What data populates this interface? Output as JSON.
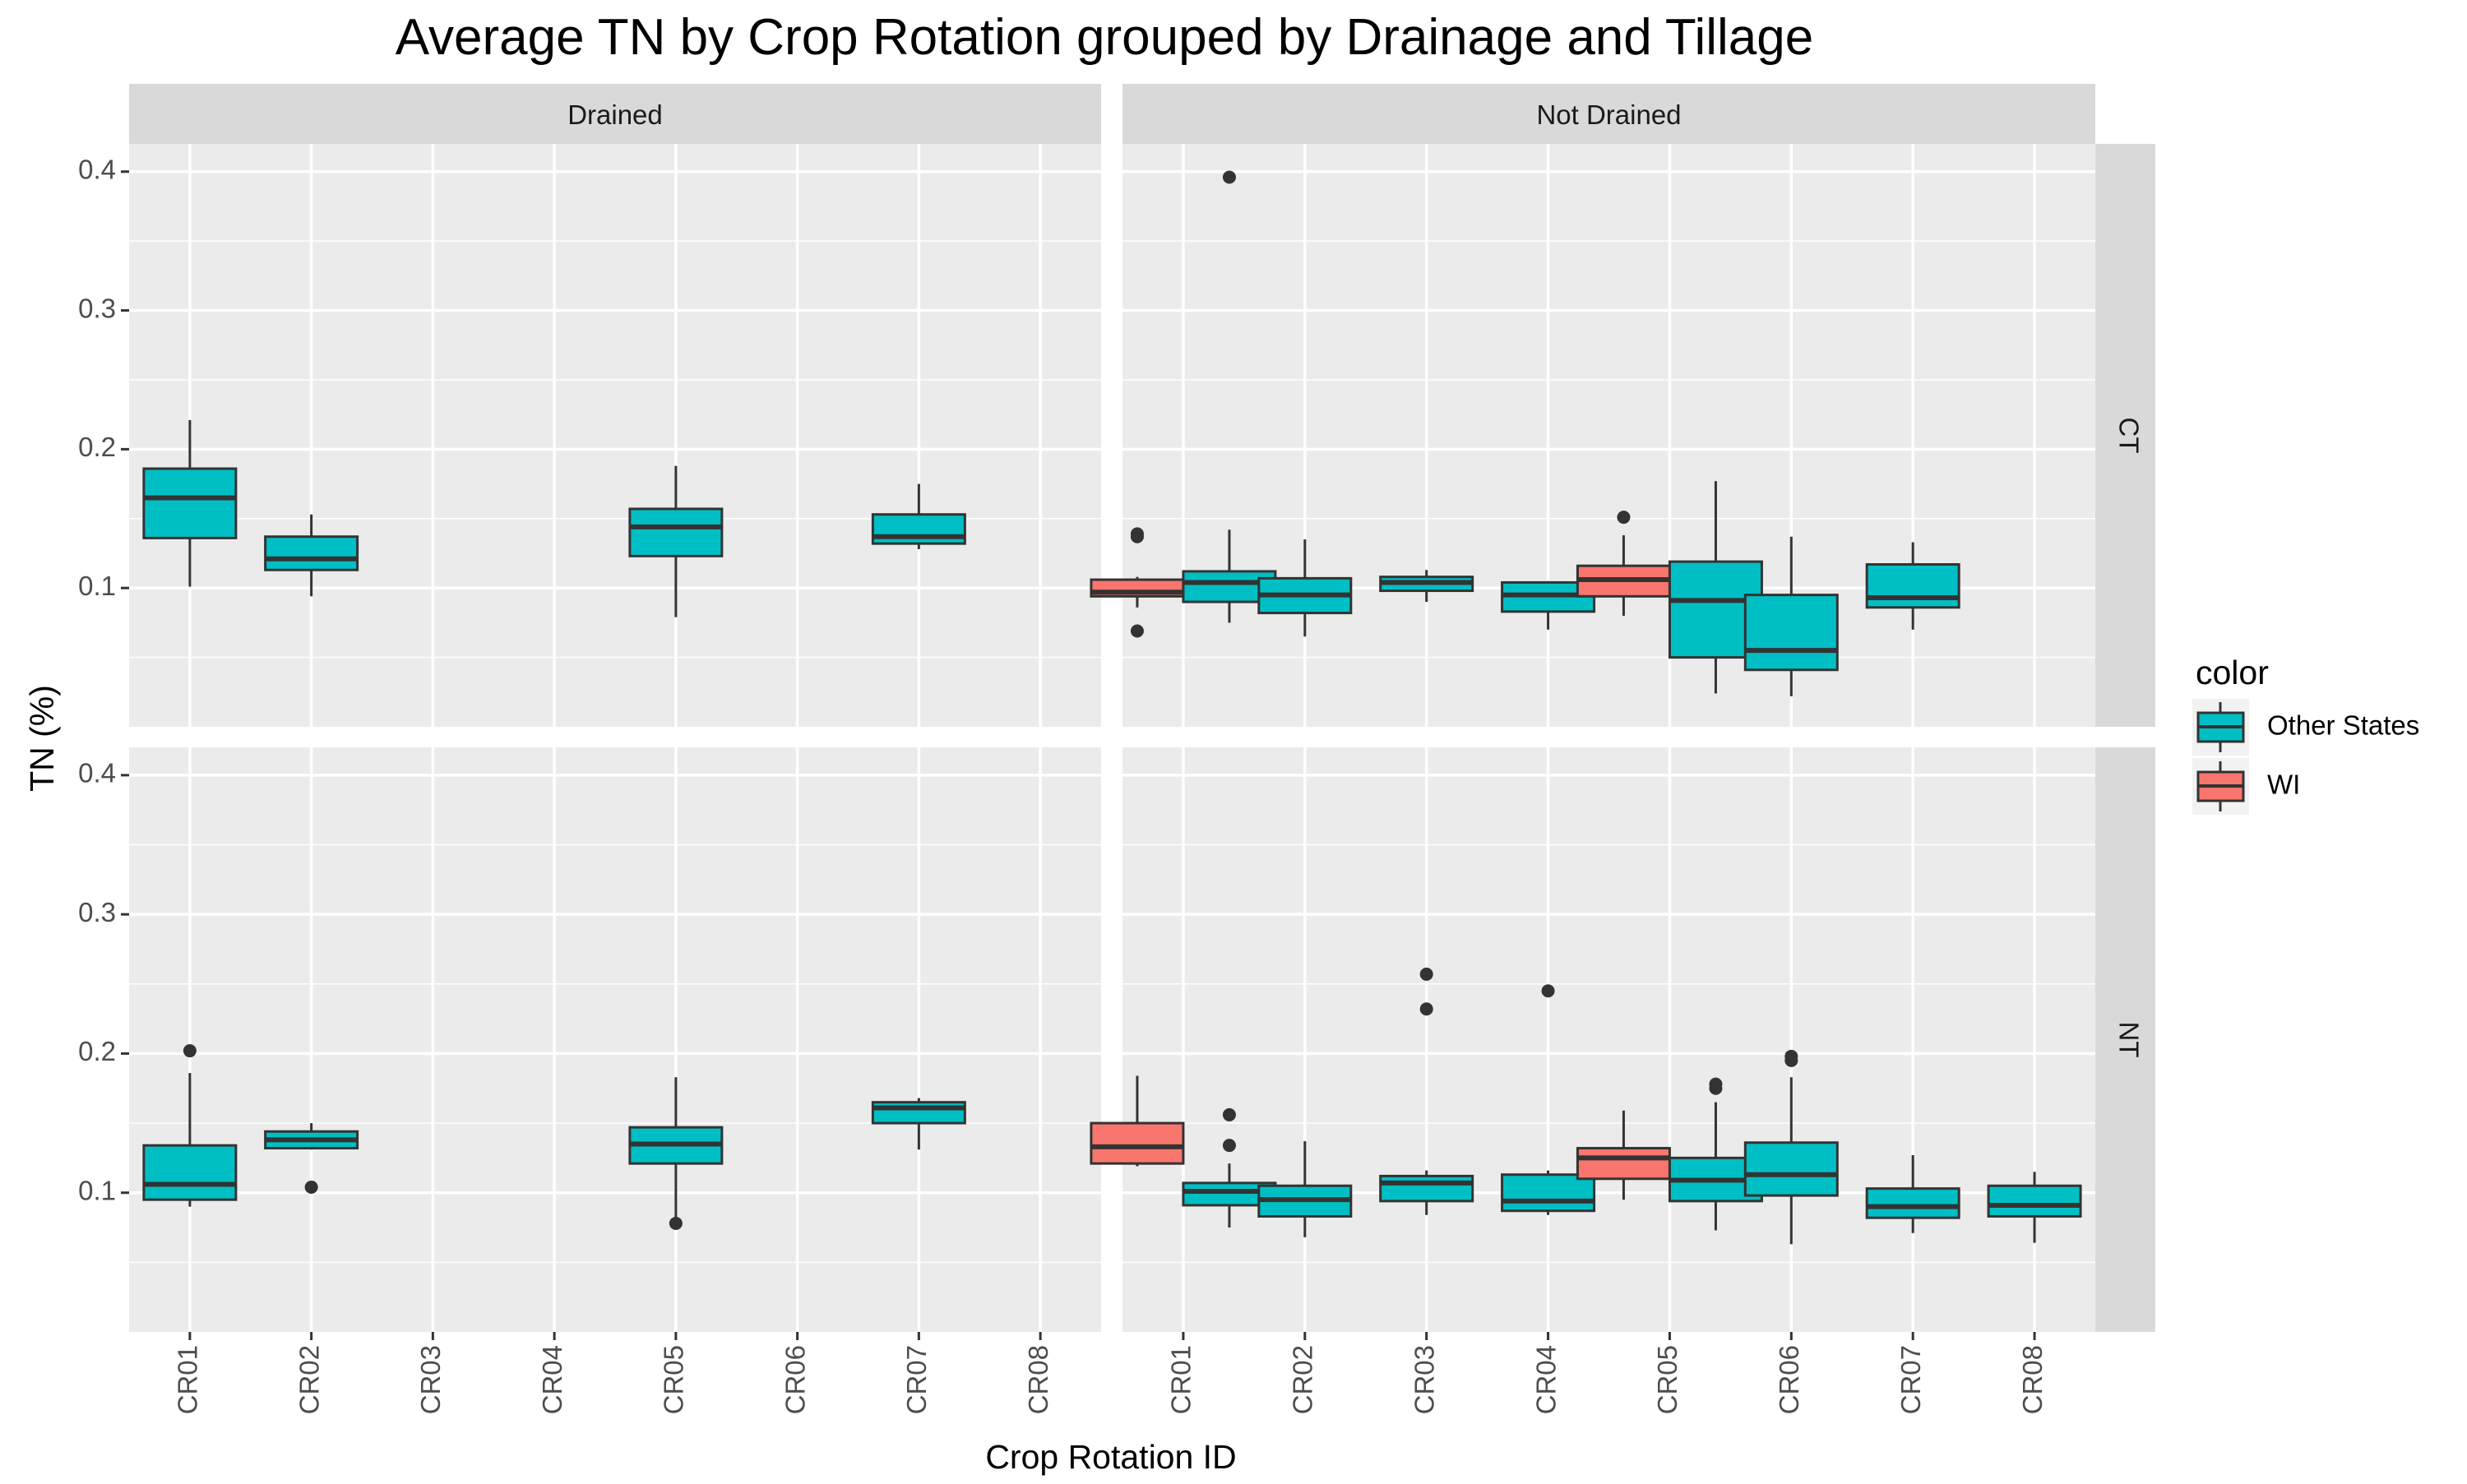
{
  "chart_data": {
    "type": "boxplot",
    "title": "Average TN by Crop Rotation grouped by Drainage and Tillage",
    "xlabel": "Crop Rotation ID",
    "ylabel": "TN (%)",
    "ylim": [
      0,
      0.42
    ],
    "yticks": [
      0.1,
      0.2,
      0.3,
      0.4
    ],
    "ytick_labels": [
      "0.1",
      "0.2",
      "0.3",
      "0.4"
    ],
    "categories": [
      "CR01",
      "CR02",
      "CR03",
      "CR04",
      "CR05",
      "CR06",
      "CR07",
      "CR08"
    ],
    "facet_columns": [
      "Drained",
      "Not Drained"
    ],
    "facet_rows": [
      "CT",
      "NT"
    ],
    "grid": true,
    "legend": {
      "title": "color",
      "position": "right",
      "entries": [
        {
          "label": "Other States",
          "color": "#00BFC4"
        },
        {
          "label": "WI",
          "color": "#F8766D"
        }
      ]
    },
    "series": [
      {
        "name": "Other States",
        "color": "#00BFC4"
      },
      {
        "name": "WI",
        "color": "#F8766D"
      }
    ],
    "panels": [
      {
        "column": "Drained",
        "row": "CT",
        "boxes": [
          {
            "category": "CR01",
            "series": "Other States",
            "lower_whisker": 0.101,
            "q1": 0.136,
            "median": 0.165,
            "q3": 0.186,
            "upper_whisker": 0.221,
            "outliers": []
          },
          {
            "category": "CR02",
            "series": "Other States",
            "lower_whisker": 0.094,
            "q1": 0.113,
            "median": 0.121,
            "q3": 0.137,
            "upper_whisker": 0.153,
            "outliers": []
          },
          {
            "category": "CR05",
            "series": "Other States",
            "lower_whisker": 0.079,
            "q1": 0.123,
            "median": 0.144,
            "q3": 0.157,
            "upper_whisker": 0.188,
            "outliers": []
          },
          {
            "category": "CR07",
            "series": "Other States",
            "lower_whisker": 0.128,
            "q1": 0.132,
            "median": 0.137,
            "q3": 0.153,
            "upper_whisker": 0.175,
            "outliers": []
          }
        ]
      },
      {
        "column": "Not Drained",
        "row": "CT",
        "boxes": [
          {
            "category": "CR01",
            "series": "WI",
            "lower_whisker": 0.086,
            "q1": 0.094,
            "median": 0.097,
            "q3": 0.106,
            "upper_whisker": 0.108,
            "outliers": [
              0.069,
              0.137,
              0.139
            ]
          },
          {
            "category": "CR01",
            "series": "Other States",
            "lower_whisker": 0.075,
            "q1": 0.09,
            "median": 0.104,
            "q3": 0.112,
            "upper_whisker": 0.142,
            "outliers": [
              0.396
            ]
          },
          {
            "category": "CR02",
            "series": "Other States",
            "lower_whisker": 0.065,
            "q1": 0.082,
            "median": 0.095,
            "q3": 0.107,
            "upper_whisker": 0.135,
            "outliers": []
          },
          {
            "category": "CR03",
            "series": "Other States",
            "lower_whisker": 0.09,
            "q1": 0.098,
            "median": 0.104,
            "q3": 0.108,
            "upper_whisker": 0.113,
            "outliers": []
          },
          {
            "category": "CR04",
            "series": "Other States",
            "lower_whisker": 0.07,
            "q1": 0.083,
            "median": 0.095,
            "q3": 0.104,
            "upper_whisker": 0.105,
            "outliers": []
          },
          {
            "category": "CR05",
            "series": "WI",
            "lower_whisker": 0.08,
            "q1": 0.094,
            "median": 0.106,
            "q3": 0.116,
            "upper_whisker": 0.138,
            "outliers": [
              0.151
            ]
          },
          {
            "category": "CR05",
            "series": "Other States",
            "lower_whisker": 0.024,
            "q1": 0.05,
            "median": 0.091,
            "q3": 0.119,
            "upper_whisker": 0.177,
            "outliers": []
          },
          {
            "category": "CR06",
            "series": "Other States",
            "lower_whisker": 0.022,
            "q1": 0.041,
            "median": 0.055,
            "q3": 0.095,
            "upper_whisker": 0.137,
            "outliers": []
          },
          {
            "category": "CR07",
            "series": "Other States",
            "lower_whisker": 0.07,
            "q1": 0.086,
            "median": 0.093,
            "q3": 0.117,
            "upper_whisker": 0.133,
            "outliers": []
          }
        ]
      },
      {
        "column": "Drained",
        "row": "NT",
        "boxes": [
          {
            "category": "CR01",
            "series": "Other States",
            "lower_whisker": 0.09,
            "q1": 0.095,
            "median": 0.106,
            "q3": 0.134,
            "upper_whisker": 0.186,
            "outliers": [
              0.202
            ]
          },
          {
            "category": "CR02",
            "series": "Other States",
            "lower_whisker": 0.131,
            "q1": 0.132,
            "median": 0.138,
            "q3": 0.144,
            "upper_whisker": 0.15,
            "outliers": [
              0.104
            ]
          },
          {
            "category": "CR05",
            "series": "Other States",
            "lower_whisker": 0.081,
            "q1": 0.121,
            "median": 0.135,
            "q3": 0.147,
            "upper_whisker": 0.183,
            "outliers": [
              0.078
            ]
          },
          {
            "category": "CR07",
            "series": "Other States",
            "lower_whisker": 0.131,
            "q1": 0.15,
            "median": 0.161,
            "q3": 0.165,
            "upper_whisker": 0.168,
            "outliers": []
          }
        ]
      },
      {
        "column": "Not Drained",
        "row": "NT",
        "boxes": [
          {
            "category": "CR01",
            "series": "WI",
            "lower_whisker": 0.119,
            "q1": 0.121,
            "median": 0.133,
            "q3": 0.15,
            "upper_whisker": 0.184,
            "outliers": []
          },
          {
            "category": "CR01",
            "series": "Other States",
            "lower_whisker": 0.075,
            "q1": 0.091,
            "median": 0.101,
            "q3": 0.107,
            "upper_whisker": 0.121,
            "outliers": [
              0.134,
              0.156
            ]
          },
          {
            "category": "CR02",
            "series": "Other States",
            "lower_whisker": 0.068,
            "q1": 0.083,
            "median": 0.095,
            "q3": 0.105,
            "upper_whisker": 0.137,
            "outliers": []
          },
          {
            "category": "CR03",
            "series": "Other States",
            "lower_whisker": 0.084,
            "q1": 0.094,
            "median": 0.107,
            "q3": 0.112,
            "upper_whisker": 0.116,
            "outliers": [
              0.232,
              0.257
            ]
          },
          {
            "category": "CR04",
            "series": "Other States",
            "lower_whisker": 0.084,
            "q1": 0.087,
            "median": 0.094,
            "q3": 0.113,
            "upper_whisker": 0.116,
            "outliers": [
              0.245
            ]
          },
          {
            "category": "CR05",
            "series": "WI",
            "lower_whisker": 0.095,
            "q1": 0.11,
            "median": 0.125,
            "q3": 0.132,
            "upper_whisker": 0.159,
            "outliers": []
          },
          {
            "category": "CR05",
            "series": "Other States",
            "lower_whisker": 0.073,
            "q1": 0.094,
            "median": 0.109,
            "q3": 0.125,
            "upper_whisker": 0.165,
            "outliers": [
              0.175,
              0.178
            ]
          },
          {
            "category": "CR06",
            "series": "Other States",
            "lower_whisker": 0.063,
            "q1": 0.098,
            "median": 0.113,
            "q3": 0.136,
            "upper_whisker": 0.183,
            "outliers": [
              0.195,
              0.198
            ]
          },
          {
            "category": "CR07",
            "series": "Other States",
            "lower_whisker": 0.071,
            "q1": 0.082,
            "median": 0.09,
            "q3": 0.103,
            "upper_whisker": 0.127,
            "outliers": []
          },
          {
            "category": "CR08",
            "series": "Other States",
            "lower_whisker": 0.064,
            "q1": 0.083,
            "median": 0.091,
            "q3": 0.105,
            "upper_whisker": 0.115,
            "outliers": []
          }
        ]
      }
    ]
  }
}
